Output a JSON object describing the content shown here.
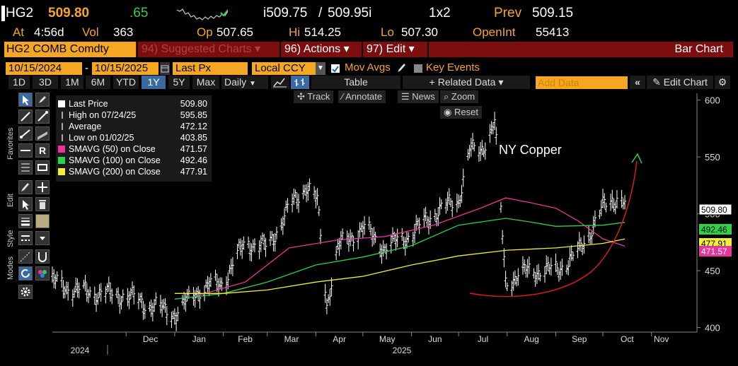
{
  "header": {
    "ticker": "HG2",
    "last": "509.80",
    "change": ".65",
    "bidask_i1": "i509.75",
    "bidask_sep": "/",
    "bidask_i2": "509.95i",
    "size": "1x2",
    "prev_label": "Prev",
    "prev_value": "509.15",
    "at_label": "At",
    "at_time": "4:56d",
    "vol_label": "Vol",
    "vol_value": "363",
    "op_label": "Op",
    "op_value": "507.65",
    "hi_label": "Hi",
    "hi_value": "514.25",
    "lo_label": "Lo",
    "lo_value": "507.30",
    "oi_label": "OpenInt",
    "oi_value": "55413"
  },
  "titlebar": {
    "security": "HG2 COMB Comdty",
    "suggested": "94) Suggested Charts",
    "suggested_arrow": "▾",
    "actions": "96) Actions",
    "actions_arrow": "▾",
    "edit": "97) Edit",
    "edit_arrow": "▾",
    "chart_type": "Bar Chart"
  },
  "controls": {
    "start_date": "10/15/2024",
    "dash": "-",
    "end_date": "10/15/2025",
    "field": "Last Px",
    "currency": "Local CCY",
    "mov_avgs": "Mov Avgs",
    "key_events": "Key Events"
  },
  "periods": [
    "1D",
    "3D",
    "1M",
    "6M",
    "YTD",
    "1Y",
    "5Y",
    "Max"
  ],
  "selected_period": "1Y",
  "frequency": "Daily",
  "toolbar": {
    "table": "Table",
    "related": "+ Related Data",
    "related_arrow": "▾",
    "add_data": "Add Data",
    "edit_chart": "Edit Chart"
  },
  "chart_controls": {
    "track": "Track",
    "annotate": "Annotate",
    "news": "News",
    "zoom": "Zoom",
    "reset": "Reset"
  },
  "sidebar": {
    "favorites": "Favorites",
    "edit": "Edit",
    "style": "Style",
    "modes": "Modes"
  },
  "legend": [
    {
      "label": "Last Price",
      "value": "509.80",
      "color": "#ffffff"
    },
    {
      "label": "High on 07/24/25",
      "value": "595.85",
      "color": "#aaaaaa"
    },
    {
      "label": "Average",
      "value": "472.12",
      "color": "#aaaaaa"
    },
    {
      "label": "Low on 01/02/25",
      "value": "403.85",
      "color": "#aaaaaa"
    },
    {
      "label": "SMAVG (50)  on Close",
      "value": "471.57",
      "color": "#e8359a"
    },
    {
      "label": "SMAVG (100)  on Close",
      "value": "492.46",
      "color": "#2fd14a"
    },
    {
      "label": "SMAVG (200)  on Close",
      "value": "477.91",
      "color": "#f2ee3a"
    }
  ],
  "annotation": "NY Copper",
  "chart_data": {
    "type": "bar",
    "title": "",
    "y_ticks": [
      400,
      450,
      500,
      550,
      600
    ],
    "ylim": [
      396,
      606
    ],
    "x_month_labels": [
      "Dec",
      "Jan",
      "Feb",
      "Mar",
      "Apr",
      "May",
      "Jun",
      "Jul",
      "Aug",
      "Sep",
      "Oct",
      "Nov"
    ],
    "x_year_labels": [
      "2024",
      "2025"
    ],
    "price_tags": [
      {
        "value": "509.80",
        "color": "#ffffff",
        "text_color": "#000000"
      },
      {
        "value": "492.46",
        "color": "#2fd14a",
        "text_color": "#000000"
      },
      {
        "value": "477.91",
        "color": "#f2ee3a",
        "text_color": "#000000"
      },
      {
        "value": "471.57",
        "color": "#e8359a",
        "text_color": "#ffffff"
      }
    ],
    "series": [
      {
        "name": "Last Price",
        "color": "#ffffff",
        "monthly_path": [
          [
            "2024-10-15",
            440
          ],
          [
            "2024-11-01",
            432
          ],
          [
            "2024-11-15",
            430
          ],
          [
            "2024-12-01",
            428
          ],
          [
            "2024-12-15",
            420
          ],
          [
            "2025-01-02",
            412
          ],
          [
            "2025-01-15",
            432
          ],
          [
            "2025-02-01",
            440
          ],
          [
            "2025-02-15",
            475
          ],
          [
            "2025-03-01",
            470
          ],
          [
            "2025-03-15",
            505
          ],
          [
            "2025-03-26",
            525
          ],
          [
            "2025-04-02",
            510
          ],
          [
            "2025-04-08",
            420
          ],
          [
            "2025-04-15",
            470
          ],
          [
            "2025-05-01",
            488
          ],
          [
            "2025-05-15",
            470
          ],
          [
            "2025-06-01",
            482
          ],
          [
            "2025-06-15",
            500
          ],
          [
            "2025-07-01",
            512
          ],
          [
            "2025-07-08",
            555
          ],
          [
            "2025-07-15",
            555
          ],
          [
            "2025-07-24",
            580
          ],
          [
            "2025-07-31",
            440
          ],
          [
            "2025-08-15",
            450
          ],
          [
            "2025-09-01",
            450
          ],
          [
            "2025-09-15",
            465
          ],
          [
            "2025-10-01",
            505
          ],
          [
            "2025-10-10",
            515
          ],
          [
            "2025-10-15",
            509.8
          ]
        ]
      },
      {
        "name": "SMAVG (50)",
        "color": "#e8359a",
        "monthly_path": [
          [
            "2025-01-15",
            428
          ],
          [
            "2025-02-15",
            440
          ],
          [
            "2025-03-15",
            470
          ],
          [
            "2025-04-15",
            477
          ],
          [
            "2025-05-15",
            480
          ],
          [
            "2025-06-15",
            490
          ],
          [
            "2025-07-15",
            505
          ],
          [
            "2025-07-31",
            514
          ],
          [
            "2025-08-15",
            510
          ],
          [
            "2025-09-01",
            505
          ],
          [
            "2025-09-15",
            494
          ],
          [
            "2025-10-01",
            478
          ],
          [
            "2025-10-15",
            471.57
          ]
        ]
      },
      {
        "name": "SMAVG (100)",
        "color": "#2fd14a",
        "monthly_path": [
          [
            "2025-01-01",
            425
          ],
          [
            "2025-02-01",
            430
          ],
          [
            "2025-03-01",
            440
          ],
          [
            "2025-04-01",
            455
          ],
          [
            "2025-05-01",
            462
          ],
          [
            "2025-06-01",
            472
          ],
          [
            "2025-07-01",
            490
          ],
          [
            "2025-07-31",
            496
          ],
          [
            "2025-08-15",
            493
          ],
          [
            "2025-09-01",
            489
          ],
          [
            "2025-10-01",
            490
          ],
          [
            "2025-10-15",
            492.46
          ]
        ]
      },
      {
        "name": "SMAVG (200)",
        "color": "#f2ee3a",
        "monthly_path": [
          [
            "2025-01-01",
            430
          ],
          [
            "2025-02-01",
            430
          ],
          [
            "2025-03-01",
            433
          ],
          [
            "2025-04-01",
            440
          ],
          [
            "2025-05-01",
            445
          ],
          [
            "2025-06-01",
            455
          ],
          [
            "2025-07-01",
            463
          ],
          [
            "2025-08-01",
            468
          ],
          [
            "2025-09-01",
            470
          ],
          [
            "2025-10-01",
            474
          ],
          [
            "2025-10-15",
            477.91
          ]
        ]
      }
    ]
  }
}
